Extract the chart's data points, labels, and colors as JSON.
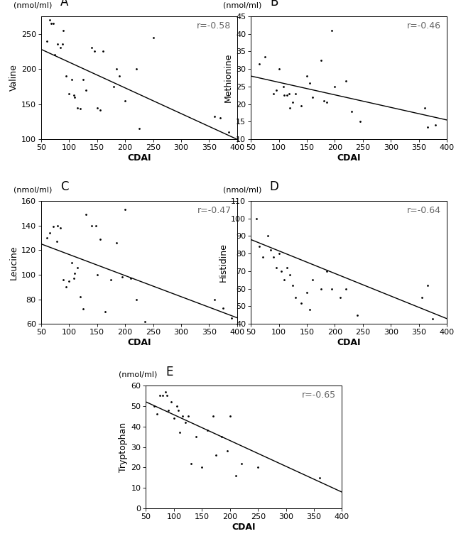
{
  "panels": [
    {
      "label": "A",
      "ylabel": "Valine",
      "ylim": [
        100,
        275
      ],
      "yticks": [
        100,
        150,
        200,
        250
      ],
      "r_text": "r=-0.58",
      "line_x": [
        50,
        400
      ],
      "line_y": [
        228,
        100
      ],
      "points_x": [
        60,
        65,
        68,
        72,
        75,
        80,
        85,
        88,
        90,
        95,
        100,
        105,
        108,
        110,
        115,
        120,
        125,
        130,
        140,
        145,
        150,
        155,
        160,
        180,
        185,
        190,
        200,
        220,
        225,
        250,
        360,
        370,
        385
      ],
      "points_y": [
        240,
        270,
        265,
        265,
        220,
        235,
        230,
        235,
        255,
        190,
        165,
        185,
        163,
        160,
        145,
        144,
        185,
        170,
        230,
        225,
        145,
        142,
        225,
        175,
        200,
        190,
        155,
        200,
        115,
        245,
        133,
        130,
        110
      ]
    },
    {
      "label": "B",
      "ylabel": "Methionine",
      "ylim": [
        10,
        45
      ],
      "yticks": [
        10,
        15,
        20,
        25,
        30,
        35,
        40,
        45
      ],
      "r_text": "r=-0.46",
      "line_x": [
        50,
        400
      ],
      "line_y": [
        28,
        15.5
      ],
      "points_x": [
        65,
        75,
        90,
        95,
        100,
        108,
        110,
        115,
        118,
        120,
        125,
        130,
        140,
        150,
        155,
        160,
        175,
        180,
        185,
        195,
        200,
        220,
        230,
        245,
        360,
        365,
        380
      ],
      "points_y": [
        31.5,
        33.5,
        23,
        24,
        30,
        25,
        22.5,
        22.5,
        23,
        19,
        20.5,
        23,
        19.5,
        28,
        26,
        22,
        32.5,
        21,
        20.5,
        41,
        25,
        26.5,
        18,
        15,
        19,
        13.5,
        14
      ]
    },
    {
      "label": "C",
      "ylabel": "Leucine",
      "ylim": [
        60,
        160
      ],
      "yticks": [
        60,
        80,
        100,
        120,
        140,
        160
      ],
      "r_text": "r=-0.47",
      "line_x": [
        50,
        400
      ],
      "line_y": [
        125,
        65
      ],
      "points_x": [
        60,
        65,
        72,
        78,
        80,
        85,
        90,
        95,
        100,
        105,
        108,
        110,
        115,
        120,
        125,
        130,
        140,
        148,
        150,
        155,
        165,
        175,
        185,
        195,
        200,
        210,
        220,
        235,
        360,
        375,
        390
      ],
      "points_y": [
        130,
        134,
        139,
        127,
        140,
        138,
        96,
        90,
        95,
        110,
        97,
        101,
        106,
        82,
        72,
        149,
        140,
        140,
        100,
        129,
        70,
        96,
        126,
        98,
        153,
        97,
        80,
        62,
        80,
        73,
        65
      ]
    },
    {
      "label": "D",
      "ylabel": "Histidine",
      "ylim": [
        40,
        110
      ],
      "yticks": [
        40,
        50,
        60,
        70,
        80,
        90,
        100,
        110
      ],
      "r_text": "r=-0.64",
      "line_x": [
        50,
        400
      ],
      "line_y": [
        88,
        43
      ],
      "points_x": [
        60,
        65,
        72,
        80,
        85,
        90,
        95,
        100,
        105,
        110,
        115,
        120,
        125,
        130,
        140,
        150,
        155,
        160,
        175,
        185,
        195,
        210,
        220,
        240,
        355,
        365,
        375
      ],
      "points_y": [
        100,
        84,
        78,
        90,
        82,
        78,
        72,
        80,
        70,
        65,
        72,
        68,
        62,
        55,
        52,
        58,
        48,
        65,
        60,
        70,
        60,
        55,
        60,
        45,
        55,
        62,
        43
      ]
    },
    {
      "label": "E",
      "ylabel": "Tryptophan",
      "ylim": [
        0,
        60
      ],
      "yticks": [
        0,
        10,
        20,
        30,
        40,
        50,
        60
      ],
      "r_text": "r=-0.65",
      "line_x": [
        50,
        400
      ],
      "line_y": [
        52,
        8
      ],
      "points_x": [
        65,
        70,
        75,
        80,
        85,
        88,
        90,
        95,
        100,
        105,
        108,
        110,
        115,
        120,
        125,
        130,
        140,
        150,
        160,
        170,
        175,
        185,
        195,
        200,
        210,
        220,
        250,
        360
      ],
      "points_y": [
        50,
        46,
        55,
        55,
        57,
        55,
        48,
        52,
        44,
        50,
        48,
        37,
        45,
        42,
        45,
        22,
        35,
        20,
        38,
        45,
        26,
        35,
        28,
        45,
        16,
        22,
        20,
        15
      ]
    }
  ],
  "xlim": [
    50,
    400
  ],
  "xticks": [
    50,
    100,
    150,
    200,
    250,
    300,
    350,
    400
  ],
  "xlabel": "CDAI",
  "unit_label": "(nmol/ml)",
  "background_color": "#ffffff",
  "point_color": "#000000",
  "line_color": "#000000",
  "point_size": 4,
  "font_size_label": 9,
  "font_size_tick": 8,
  "font_size_r": 9,
  "font_size_panel": 12,
  "font_size_unit": 8
}
